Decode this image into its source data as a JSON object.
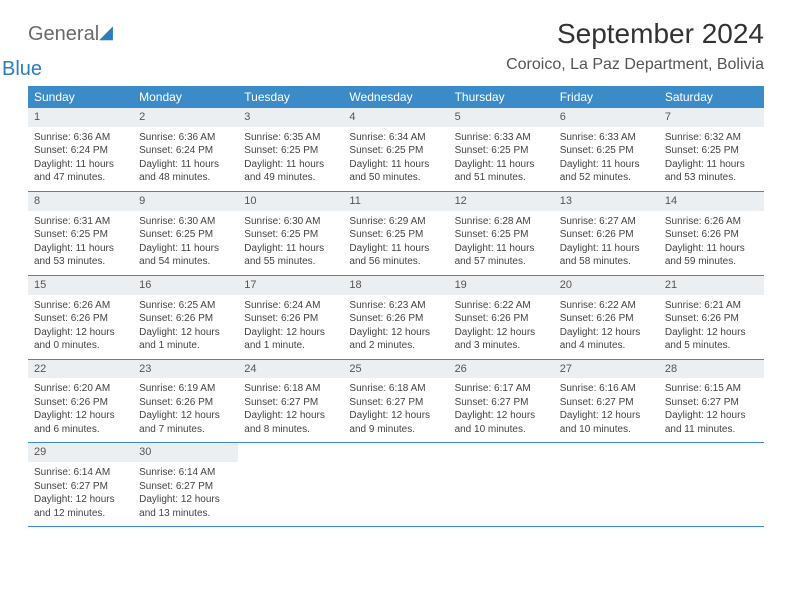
{
  "logo": {
    "word1": "General",
    "word2": "Blue"
  },
  "title": "September 2024",
  "location": "Coroico, La Paz Department, Bolivia",
  "colors": {
    "header_bg": "#3b8bc9",
    "daynum_bg": "#eceff1",
    "border": "#3b8bc9",
    "text": "#444444",
    "logo_gray": "#6a6a6a",
    "logo_blue": "#2b7cc0"
  },
  "dow": [
    "Sunday",
    "Monday",
    "Tuesday",
    "Wednesday",
    "Thursday",
    "Friday",
    "Saturday"
  ],
  "days": [
    {
      "n": "1",
      "sunrise": "Sunrise: 6:36 AM",
      "sunset": "Sunset: 6:24 PM",
      "daylight": "Daylight: 11 hours and 47 minutes."
    },
    {
      "n": "2",
      "sunrise": "Sunrise: 6:36 AM",
      "sunset": "Sunset: 6:24 PM",
      "daylight": "Daylight: 11 hours and 48 minutes."
    },
    {
      "n": "3",
      "sunrise": "Sunrise: 6:35 AM",
      "sunset": "Sunset: 6:25 PM",
      "daylight": "Daylight: 11 hours and 49 minutes."
    },
    {
      "n": "4",
      "sunrise": "Sunrise: 6:34 AM",
      "sunset": "Sunset: 6:25 PM",
      "daylight": "Daylight: 11 hours and 50 minutes."
    },
    {
      "n": "5",
      "sunrise": "Sunrise: 6:33 AM",
      "sunset": "Sunset: 6:25 PM",
      "daylight": "Daylight: 11 hours and 51 minutes."
    },
    {
      "n": "6",
      "sunrise": "Sunrise: 6:33 AM",
      "sunset": "Sunset: 6:25 PM",
      "daylight": "Daylight: 11 hours and 52 minutes."
    },
    {
      "n": "7",
      "sunrise": "Sunrise: 6:32 AM",
      "sunset": "Sunset: 6:25 PM",
      "daylight": "Daylight: 11 hours and 53 minutes."
    },
    {
      "n": "8",
      "sunrise": "Sunrise: 6:31 AM",
      "sunset": "Sunset: 6:25 PM",
      "daylight": "Daylight: 11 hours and 53 minutes."
    },
    {
      "n": "9",
      "sunrise": "Sunrise: 6:30 AM",
      "sunset": "Sunset: 6:25 PM",
      "daylight": "Daylight: 11 hours and 54 minutes."
    },
    {
      "n": "10",
      "sunrise": "Sunrise: 6:30 AM",
      "sunset": "Sunset: 6:25 PM",
      "daylight": "Daylight: 11 hours and 55 minutes."
    },
    {
      "n": "11",
      "sunrise": "Sunrise: 6:29 AM",
      "sunset": "Sunset: 6:25 PM",
      "daylight": "Daylight: 11 hours and 56 minutes."
    },
    {
      "n": "12",
      "sunrise": "Sunrise: 6:28 AM",
      "sunset": "Sunset: 6:25 PM",
      "daylight": "Daylight: 11 hours and 57 minutes."
    },
    {
      "n": "13",
      "sunrise": "Sunrise: 6:27 AM",
      "sunset": "Sunset: 6:26 PM",
      "daylight": "Daylight: 11 hours and 58 minutes."
    },
    {
      "n": "14",
      "sunrise": "Sunrise: 6:26 AM",
      "sunset": "Sunset: 6:26 PM",
      "daylight": "Daylight: 11 hours and 59 minutes."
    },
    {
      "n": "15",
      "sunrise": "Sunrise: 6:26 AM",
      "sunset": "Sunset: 6:26 PM",
      "daylight": "Daylight: 12 hours and 0 minutes."
    },
    {
      "n": "16",
      "sunrise": "Sunrise: 6:25 AM",
      "sunset": "Sunset: 6:26 PM",
      "daylight": "Daylight: 12 hours and 1 minute."
    },
    {
      "n": "17",
      "sunrise": "Sunrise: 6:24 AM",
      "sunset": "Sunset: 6:26 PM",
      "daylight": "Daylight: 12 hours and 1 minute."
    },
    {
      "n": "18",
      "sunrise": "Sunrise: 6:23 AM",
      "sunset": "Sunset: 6:26 PM",
      "daylight": "Daylight: 12 hours and 2 minutes."
    },
    {
      "n": "19",
      "sunrise": "Sunrise: 6:22 AM",
      "sunset": "Sunset: 6:26 PM",
      "daylight": "Daylight: 12 hours and 3 minutes."
    },
    {
      "n": "20",
      "sunrise": "Sunrise: 6:22 AM",
      "sunset": "Sunset: 6:26 PM",
      "daylight": "Daylight: 12 hours and 4 minutes."
    },
    {
      "n": "21",
      "sunrise": "Sunrise: 6:21 AM",
      "sunset": "Sunset: 6:26 PM",
      "daylight": "Daylight: 12 hours and 5 minutes."
    },
    {
      "n": "22",
      "sunrise": "Sunrise: 6:20 AM",
      "sunset": "Sunset: 6:26 PM",
      "daylight": "Daylight: 12 hours and 6 minutes."
    },
    {
      "n": "23",
      "sunrise": "Sunrise: 6:19 AM",
      "sunset": "Sunset: 6:26 PM",
      "daylight": "Daylight: 12 hours and 7 minutes."
    },
    {
      "n": "24",
      "sunrise": "Sunrise: 6:18 AM",
      "sunset": "Sunset: 6:27 PM",
      "daylight": "Daylight: 12 hours and 8 minutes."
    },
    {
      "n": "25",
      "sunrise": "Sunrise: 6:18 AM",
      "sunset": "Sunset: 6:27 PM",
      "daylight": "Daylight: 12 hours and 9 minutes."
    },
    {
      "n": "26",
      "sunrise": "Sunrise: 6:17 AM",
      "sunset": "Sunset: 6:27 PM",
      "daylight": "Daylight: 12 hours and 10 minutes."
    },
    {
      "n": "27",
      "sunrise": "Sunrise: 6:16 AM",
      "sunset": "Sunset: 6:27 PM",
      "daylight": "Daylight: 12 hours and 10 minutes."
    },
    {
      "n": "28",
      "sunrise": "Sunrise: 6:15 AM",
      "sunset": "Sunset: 6:27 PM",
      "daylight": "Daylight: 12 hours and 11 minutes."
    },
    {
      "n": "29",
      "sunrise": "Sunrise: 6:14 AM",
      "sunset": "Sunset: 6:27 PM",
      "daylight": "Daylight: 12 hours and 12 minutes."
    },
    {
      "n": "30",
      "sunrise": "Sunrise: 6:14 AM",
      "sunset": "Sunset: 6:27 PM",
      "daylight": "Daylight: 12 hours and 13 minutes."
    }
  ]
}
